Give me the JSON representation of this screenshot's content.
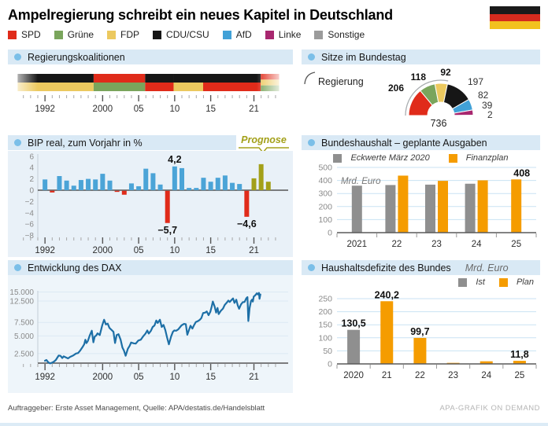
{
  "title": "Ampelregierung schreibt ein neues Kapitel in Deutschland",
  "flag": {
    "name": "german-flag",
    "colors": [
      "#1a1a1a",
      "#d52b1e",
      "#f2c11e"
    ]
  },
  "colors": {
    "spd": "#e02b1a",
    "gruene": "#7aa55c",
    "fdp": "#ecc95f",
    "cdu": "#161616",
    "afd": "#41a1d7",
    "linke": "#a8276f",
    "sonstige": "#9b9b9b",
    "orange": "#f59c00",
    "bar_gray": "#8f8f8f",
    "bip_blue": "#4ba4d7",
    "bip_red": "#e02b1a",
    "olive": "#a3a019",
    "dax_line": "#1d6fa6",
    "header_bg": "#d9e9f5",
    "header_dot": "#7bbfe8",
    "wash_bip": "#e9f1f8",
    "wash_dax": "#eef5fa",
    "grid_blue": "#c9e2f3",
    "grid_dax": "#dce9f4",
    "axis_dark": "#5a5a5a"
  },
  "party_legend": [
    {
      "id": "spd",
      "label": "SPD"
    },
    {
      "id": "gruene",
      "label": "Grüne"
    },
    {
      "id": "fdp",
      "label": "FDP"
    },
    {
      "id": "cdu",
      "label": "CDU/CSU"
    },
    {
      "id": "afd",
      "label": "AfD"
    },
    {
      "id": "linke",
      "label": "Linke"
    },
    {
      "id": "sonstige",
      "label": "Sonstige"
    }
  ],
  "footer": {
    "left": "Auftraggeber: Erste Asset Management, Quelle: APA/destatis.de/Handelsblatt",
    "right": "APA-GRAFIK ON DEMAND"
  },
  "chart_data": [
    {
      "id": "regierungskoalitionen",
      "type": "timeline",
      "title": "Regierungskoalitionen",
      "x_axis": {
        "tick_start": 1989,
        "tick_end": 2024,
        "major_ticks": [
          1992,
          2000,
          2005,
          2010,
          2015,
          2021
        ],
        "major_labels": [
          "1992",
          "2000",
          "05",
          "10",
          "15",
          "21"
        ]
      },
      "segments": [
        {
          "from": 1988.2,
          "to": 1998.75,
          "parties": [
            "CDU/CSU",
            "FDP"
          ],
          "colors": [
            "cdu",
            "fdp"
          ]
        },
        {
          "from": 1998.75,
          "to": 2005.9,
          "parties": [
            "SPD",
            "Grüne"
          ],
          "colors": [
            "spd",
            "gruene"
          ]
        },
        {
          "from": 2005.9,
          "to": 2009.85,
          "parties": [
            "CDU/CSU",
            "SPD"
          ],
          "colors": [
            "cdu",
            "spd"
          ]
        },
        {
          "from": 2009.85,
          "to": 2013.95,
          "parties": [
            "CDU/CSU",
            "FDP"
          ],
          "colors": [
            "cdu",
            "fdp"
          ]
        },
        {
          "from": 2013.95,
          "to": 2021.95,
          "parties": [
            "CDU/CSU",
            "SPD"
          ],
          "colors": [
            "cdu",
            "spd"
          ]
        },
        {
          "from": 2021.95,
          "to": 2024.5,
          "parties": [
            "SPD",
            "FDP",
            "Grüne"
          ],
          "colors": [
            "spd",
            "fdp",
            "gruene"
          ]
        }
      ]
    },
    {
      "id": "bip",
      "type": "bar",
      "title": "BIP real, zum Vorjahr in %",
      "prognose_label": "Prognose",
      "ylabel": "%",
      "ylim": [
        -8,
        6
      ],
      "y_ticks": [
        6,
        4,
        2,
        0,
        -2,
        -4,
        -6,
        -8
      ],
      "x_axis": {
        "tick_start": 1989,
        "tick_end": 2024,
        "major_ticks": [
          1992,
          2000,
          2005,
          2010,
          2015,
          2021
        ],
        "major_labels": [
          "1992",
          "2000",
          "05",
          "10",
          "15",
          "21"
        ]
      },
      "years": [
        1992,
        1993,
        1994,
        1995,
        1996,
        1997,
        1998,
        1999,
        2000,
        2001,
        2002,
        2003,
        2004,
        2005,
        2006,
        2007,
        2008,
        2009,
        2010,
        2011,
        2012,
        2013,
        2014,
        2015,
        2016,
        2017,
        2018,
        2019,
        2020,
        2021,
        2022,
        2023
      ],
      "values": [
        1.9,
        -0.3,
        2.5,
        1.7,
        0.8,
        1.8,
        2.0,
        1.9,
        2.9,
        1.7,
        -0.2,
        -0.7,
        1.2,
        0.7,
        3.8,
        3.0,
        1.0,
        -5.7,
        4.2,
        3.9,
        0.4,
        0.4,
        2.2,
        1.5,
        2.2,
        2.6,
        1.3,
        1.1,
        -4.6,
        2.1,
        4.6,
        1.5
      ],
      "prognose_years": [
        2021,
        2022,
        2023
      ],
      "annotations": [
        {
          "year": 2010,
          "text": "4,2",
          "pos": "above"
        },
        {
          "year": 2009,
          "text": "−5,7",
          "pos": "below"
        },
        {
          "year": 2020,
          "text": "−4,6",
          "pos": "below"
        }
      ]
    },
    {
      "id": "dax",
      "type": "line",
      "title": "Entwicklung des DAX",
      "y_tick_labels": [
        [
          "15.000",
          15000
        ],
        [
          "12.500",
          12500
        ],
        [
          "7.500",
          7500
        ],
        [
          "5.000",
          5000
        ],
        [
          "2.500",
          2500
        ]
      ],
      "x_axis": {
        "tick_start": 1989,
        "tick_end": 2024,
        "major_ticks": [
          1992,
          2000,
          2005,
          2010,
          2015,
          2021
        ],
        "major_labels": [
          "1992",
          "2000",
          "05",
          "10",
          "15",
          "21"
        ]
      },
      "points": [
        [
          1992.0,
          1720
        ],
        [
          1992.2,
          1800
        ],
        [
          1992.45,
          1580
        ],
        [
          1992.7,
          1480
        ],
        [
          1992.9,
          1520
        ],
        [
          1993.2,
          1620
        ],
        [
          1993.5,
          1800
        ],
        [
          1993.9,
          2270
        ],
        [
          1994.15,
          2240
        ],
        [
          1994.4,
          2000
        ],
        [
          1994.6,
          2180
        ],
        [
          1994.9,
          2070
        ],
        [
          1995.2,
          1960
        ],
        [
          1995.5,
          2130
        ],
        [
          1995.9,
          2270
        ],
        [
          1996.3,
          2500
        ],
        [
          1996.6,
          2560
        ],
        [
          1996.9,
          2890
        ],
        [
          1997.2,
          3300
        ],
        [
          1997.45,
          3720
        ],
        [
          1997.6,
          4400
        ],
        [
          1997.75,
          3880
        ],
        [
          1997.95,
          4200
        ],
        [
          1998.2,
          5050
        ],
        [
          1998.5,
          5900
        ],
        [
          1998.72,
          4000
        ],
        [
          1998.9,
          4900
        ],
        [
          1999.1,
          5050
        ],
        [
          1999.3,
          5450
        ],
        [
          1999.6,
          5150
        ],
        [
          1999.95,
          6960
        ],
        [
          2000.2,
          8060
        ],
        [
          2000.45,
          7100
        ],
        [
          2000.7,
          7250
        ],
        [
          2000.95,
          6430
        ],
        [
          2001.2,
          6100
        ],
        [
          2001.5,
          5700
        ],
        [
          2001.72,
          3900
        ],
        [
          2001.95,
          5160
        ],
        [
          2002.2,
          5300
        ],
        [
          2002.5,
          4400
        ],
        [
          2002.75,
          3250
        ],
        [
          2002.95,
          2900
        ],
        [
          2003.2,
          2250
        ],
        [
          2003.5,
          3100
        ],
        [
          2003.75,
          3500
        ],
        [
          2003.95,
          3960
        ],
        [
          2004.3,
          3850
        ],
        [
          2004.6,
          3800
        ],
        [
          2004.95,
          4260
        ],
        [
          2005.3,
          4400
        ],
        [
          2005.6,
          4900
        ],
        [
          2005.95,
          5410
        ],
        [
          2006.2,
          5960
        ],
        [
          2006.4,
          5400
        ],
        [
          2006.7,
          5900
        ],
        [
          2006.95,
          6600
        ],
        [
          2007.2,
          6900
        ],
        [
          2007.45,
          7900
        ],
        [
          2007.65,
          7400
        ],
        [
          2007.95,
          8070
        ],
        [
          2008.2,
          6600
        ],
        [
          2008.45,
          7000
        ],
        [
          2008.7,
          6000
        ],
        [
          2008.95,
          4750
        ],
        [
          2009.2,
          3700
        ],
        [
          2009.5,
          4900
        ],
        [
          2009.75,
          5700
        ],
        [
          2009.95,
          5960
        ],
        [
          2010.2,
          5900
        ],
        [
          2010.5,
          6150
        ],
        [
          2010.95,
          6910
        ],
        [
          2011.3,
          7200
        ],
        [
          2011.55,
          7150
        ],
        [
          2011.75,
          5200
        ],
        [
          2011.95,
          5900
        ],
        [
          2012.2,
          6850
        ],
        [
          2012.45,
          6300
        ],
        [
          2012.7,
          7000
        ],
        [
          2012.95,
          7610
        ],
        [
          2013.2,
          7750
        ],
        [
          2013.45,
          8000
        ],
        [
          2013.7,
          8400
        ],
        [
          2013.95,
          9550
        ],
        [
          2014.2,
          9600
        ],
        [
          2014.45,
          9900
        ],
        [
          2014.7,
          9050
        ],
        [
          2014.95,
          9810
        ],
        [
          2015.15,
          11200
        ],
        [
          2015.3,
          12370
        ],
        [
          2015.55,
          11100
        ],
        [
          2015.75,
          9650
        ],
        [
          2015.95,
          10740
        ],
        [
          2016.1,
          9300
        ],
        [
          2016.4,
          10050
        ],
        [
          2016.7,
          10600
        ],
        [
          2016.95,
          11480
        ],
        [
          2017.2,
          12000
        ],
        [
          2017.45,
          12630
        ],
        [
          2017.65,
          12250
        ],
        [
          2017.95,
          12920
        ],
        [
          2018.1,
          13200
        ],
        [
          2018.3,
          12000
        ],
        [
          2018.55,
          12850
        ],
        [
          2018.75,
          11400
        ],
        [
          2018.95,
          10560
        ],
        [
          2019.2,
          11600
        ],
        [
          2019.45,
          12200
        ],
        [
          2019.7,
          12250
        ],
        [
          2019.95,
          13250
        ],
        [
          2020.1,
          13550
        ],
        [
          2020.22,
          7800
        ],
        [
          2020.4,
          10700
        ],
        [
          2020.6,
          12500
        ],
        [
          2020.75,
          12900
        ],
        [
          2020.85,
          12350
        ],
        [
          2020.98,
          13720
        ],
        [
          2021.15,
          14000
        ],
        [
          2021.4,
          14600
        ],
        [
          2021.55,
          14300
        ],
        [
          2021.7,
          14750
        ],
        [
          2021.78,
          13100
        ],
        [
          2021.9,
          14300
        ]
      ]
    },
    {
      "id": "sitze",
      "type": "pie",
      "title": "Sitze im Bundestag",
      "regierung_label": "Regierung",
      "total": 736,
      "total_label": "736",
      "government_slices": 3,
      "slices": [
        {
          "party": "SPD",
          "seats": 206,
          "color": "spd",
          "bold": true
        },
        {
          "party": "Grüne",
          "seats": 118,
          "color": "gruene",
          "bold": true
        },
        {
          "party": "FDP",
          "seats": 92,
          "color": "fdp",
          "bold": true
        },
        {
          "party": "CDU/CSU",
          "seats": 197,
          "color": "cdu",
          "bold": false
        },
        {
          "party": "AfD",
          "seats": 82,
          "color": "afd",
          "bold": false
        },
        {
          "party": "Linke",
          "seats": 39,
          "color": "linke",
          "bold": false
        },
        {
          "party": "Sonstige",
          "seats": 2,
          "color": "sonstige",
          "bold": false
        }
      ]
    },
    {
      "id": "bundeshaushalt",
      "type": "bar",
      "title": "Bundeshaushalt – geplante Ausgaben",
      "unit": "Mrd. Euro",
      "ylim": [
        0,
        500
      ],
      "y_ticks": [
        0,
        100,
        200,
        300,
        400,
        500
      ],
      "categories": [
        "2021",
        "22",
        "23",
        "24",
        "25"
      ],
      "series": [
        {
          "name": "Eckwerte März 2020",
          "color_key": "bar_gray",
          "values": [
            360,
            365,
            368,
            375,
            null
          ]
        },
        {
          "name": "Finanzplan",
          "color_key": "orange",
          "values": [
            null,
            437,
            397,
            401,
            408
          ]
        }
      ],
      "value_labels": [
        {
          "series": 1,
          "index": 4,
          "text": "408"
        }
      ]
    },
    {
      "id": "haushaltsdefizite",
      "type": "bar",
      "title": "Haushaltsdefizite des Bundes",
      "unit": "Mrd. Euro",
      "ylim": [
        0,
        250
      ],
      "y_ticks": [
        0,
        50,
        100,
        150,
        200,
        250
      ],
      "categories": [
        "2020",
        "21",
        "22",
        "23",
        "24",
        "25"
      ],
      "series": [
        {
          "name": "Ist",
          "color_key": "bar_gray",
          "values": [
            130.5,
            null,
            null,
            null,
            null,
            null
          ]
        },
        {
          "name": "Plan",
          "color_key": "orange",
          "values": [
            null,
            240.2,
            99.7,
            4,
            10,
            11.8
          ]
        }
      ],
      "value_labels": [
        {
          "index": 0,
          "text": "130,5"
        },
        {
          "index": 1,
          "text": "240,2"
        },
        {
          "index": 2,
          "text": "99,7"
        },
        {
          "index": 5,
          "text": "11,8"
        }
      ]
    }
  ]
}
